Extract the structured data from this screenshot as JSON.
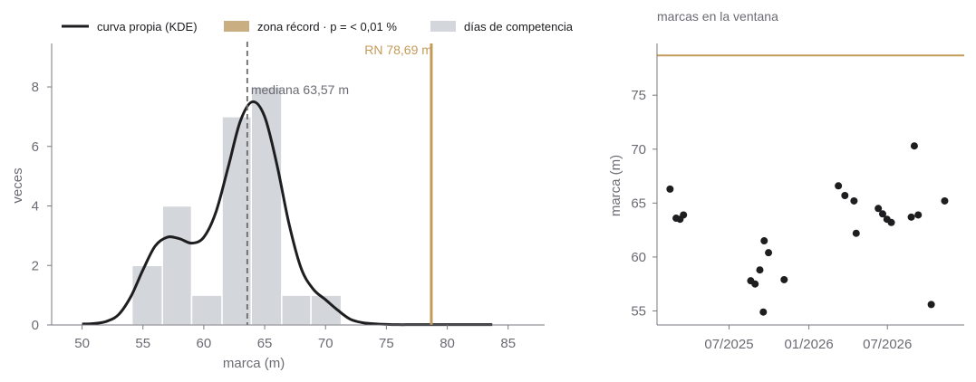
{
  "colors": {
    "kde": "#1e1e20",
    "record": "#c49a58",
    "record_legend": "#c9ae82",
    "bars": "#d3d6db",
    "median": "#6b6b6b",
    "axis": "#7a7a80",
    "text": "#6b6b73",
    "points": "#1e1e20"
  },
  "legend": {
    "kde_label": "curva propia (KDE)",
    "record_label": "zona récord · p = < 0,01 %",
    "bars_label": "días de competencia"
  },
  "annotations": {
    "record_label": "RN 78,69 m",
    "median_label": "mediana 63,57 m"
  },
  "chart_data": [
    {
      "type": "bar",
      "xlabel": "marca (m)",
      "ylabel": "veces",
      "xlim": [
        47.5,
        88
      ],
      "ylim": [
        0,
        9.4
      ],
      "xticks": [
        "50",
        "55",
        "60",
        "65",
        "70",
        "75",
        "80",
        "85"
      ],
      "yticks": [
        "0",
        "2",
        "4",
        "6",
        "8"
      ],
      "histogram": {
        "name": "días de competencia",
        "bin_edges": [
          54.1,
          56.6,
          59.0,
          61.5,
          63.9,
          66.4,
          68.8,
          71.3
        ],
        "counts": [
          2,
          4,
          1,
          7,
          8,
          1,
          1
        ]
      },
      "kde": {
        "name": "curva propia (KDE)",
        "x": [
          50,
          51,
          52,
          53,
          54,
          55,
          56,
          57,
          58,
          59,
          60,
          61,
          62,
          63,
          64,
          65,
          66,
          67,
          68,
          69,
          70,
          71,
          72,
          73,
          74,
          75,
          76,
          77,
          78,
          79,
          80,
          81,
          82,
          83,
          83.7
        ],
        "y": [
          0.03,
          0.05,
          0.12,
          0.35,
          0.95,
          1.85,
          2.65,
          2.95,
          2.9,
          2.75,
          2.95,
          3.8,
          5.3,
          6.85,
          7.5,
          7.0,
          5.4,
          3.4,
          1.9,
          1.2,
          0.85,
          0.5,
          0.2,
          0.08,
          0.04,
          0.02,
          0.01,
          0.01,
          0.01,
          0.01,
          0.01,
          0.01,
          0.01,
          0.01,
          0.01
        ]
      },
      "median": 63.57,
      "record": 78.69
    },
    {
      "type": "scatter",
      "title": "marcas en la ventana",
      "xlabel": "",
      "ylabel": "marca (m)",
      "xlim": [
        "2025-01-16",
        "2026-12-25"
      ],
      "ylim": [
        53.7,
        79.8
      ],
      "xticks": [
        {
          "date": "2025-07-01",
          "label": "07/2025"
        },
        {
          "date": "2026-01-01",
          "label": "01/2026"
        },
        {
          "date": "2026-07-01",
          "label": "07/2026"
        }
      ],
      "yticks": [
        "55",
        "60",
        "65",
        "70",
        "75"
      ],
      "record": 78.69,
      "points": [
        {
          "date": "2025-02-15",
          "value": 66.3
        },
        {
          "date": "2025-03-01",
          "value": 63.6
        },
        {
          "date": "2025-03-10",
          "value": 63.5
        },
        {
          "date": "2025-03-18",
          "value": 63.9
        },
        {
          "date": "2025-08-20",
          "value": 57.8
        },
        {
          "date": "2025-08-30",
          "value": 57.5
        },
        {
          "date": "2025-09-10",
          "value": 58.8
        },
        {
          "date": "2025-09-18",
          "value": 54.9
        },
        {
          "date": "2025-09-20",
          "value": 61.5
        },
        {
          "date": "2025-09-30",
          "value": 60.4
        },
        {
          "date": "2025-11-05",
          "value": 57.9
        },
        {
          "date": "2026-03-10",
          "value": 66.6
        },
        {
          "date": "2026-03-25",
          "value": 65.7
        },
        {
          "date": "2026-04-15",
          "value": 65.2
        },
        {
          "date": "2026-04-20",
          "value": 62.2
        },
        {
          "date": "2026-06-10",
          "value": 64.5
        },
        {
          "date": "2026-06-20",
          "value": 64.0
        },
        {
          "date": "2026-06-30",
          "value": 63.5
        },
        {
          "date": "2026-07-10",
          "value": 63.2
        },
        {
          "date": "2026-08-25",
          "value": 63.7
        },
        {
          "date": "2026-09-01",
          "value": 70.3
        },
        {
          "date": "2026-09-10",
          "value": 63.9
        },
        {
          "date": "2026-10-10",
          "value": 55.6
        },
        {
          "date": "2026-11-10",
          "value": 65.2
        }
      ]
    }
  ]
}
